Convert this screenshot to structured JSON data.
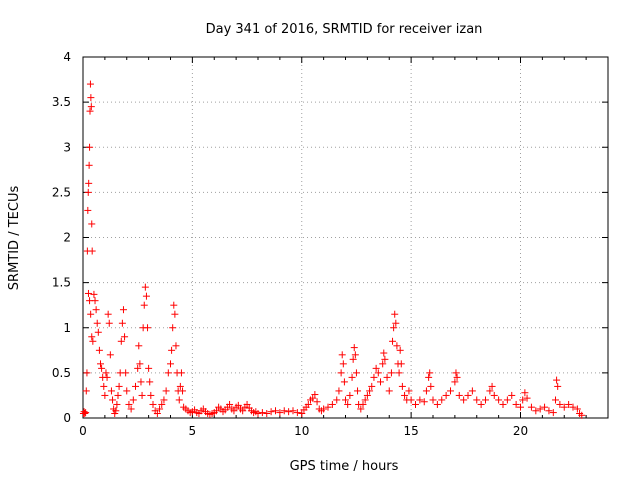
{
  "colors": {
    "marker": "#ff0000",
    "grid": "#a0a0a0",
    "axis": "#000000",
    "background": "#ffffff"
  },
  "chart_data": {
    "type": "scatter",
    "title": "Day 341 of 2016, SRMTID for receiver izan",
    "xlabel": "GPS time / hours",
    "ylabel": "SRMTID / TECUs",
    "xlim": [
      0,
      24
    ],
    "ylim": [
      0,
      4
    ],
    "xticks": [
      0,
      5,
      10,
      15,
      20
    ],
    "yticks": [
      0,
      0.5,
      1,
      1.5,
      2,
      2.5,
      3,
      3.5,
      4
    ],
    "ytick_labels": [
      "0",
      "0.5",
      "1",
      "1.5",
      "2",
      "2.5",
      "3",
      "3.5",
      "4"
    ],
    "grid": true,
    "marker": "+",
    "series": [
      {
        "name": "SRMTID",
        "points": [
          [
            0.02,
            0.05
          ],
          [
            0.05,
            0.07
          ],
          [
            0.08,
            0.05
          ],
          [
            0.12,
            0.06
          ],
          [
            0.15,
            0.3
          ],
          [
            0.18,
            0.5
          ],
          [
            0.2,
            1.85
          ],
          [
            0.22,
            2.3
          ],
          [
            0.24,
            2.5
          ],
          [
            0.26,
            2.6
          ],
          [
            0.28,
            2.8
          ],
          [
            0.3,
            3.0
          ],
          [
            0.32,
            3.4
          ],
          [
            0.34,
            3.7
          ],
          [
            0.36,
            3.55
          ],
          [
            0.38,
            3.45
          ],
          [
            0.4,
            2.15
          ],
          [
            0.42,
            1.85
          ],
          [
            0.25,
            1.38
          ],
          [
            0.3,
            1.3
          ],
          [
            0.35,
            1.15
          ],
          [
            0.4,
            0.9
          ],
          [
            0.45,
            0.85
          ],
          [
            0.5,
            1.37
          ],
          [
            0.55,
            1.3
          ],
          [
            0.6,
            1.2
          ],
          [
            0.65,
            1.05
          ],
          [
            0.7,
            0.95
          ],
          [
            0.75,
            0.75
          ],
          [
            0.8,
            0.6
          ],
          [
            0.85,
            0.55
          ],
          [
            0.9,
            0.45
          ],
          [
            0.95,
            0.35
          ],
          [
            1.0,
            0.25
          ],
          [
            1.05,
            0.5
          ],
          [
            1.1,
            0.45
          ],
          [
            1.15,
            1.15
          ],
          [
            1.2,
            1.05
          ],
          [
            1.25,
            0.7
          ],
          [
            1.3,
            0.3
          ],
          [
            1.35,
            0.2
          ],
          [
            1.4,
            0.1
          ],
          [
            1.45,
            0.05
          ],
          [
            1.5,
            0.08
          ],
          [
            1.55,
            0.15
          ],
          [
            1.6,
            0.25
          ],
          [
            1.65,
            0.35
          ],
          [
            1.7,
            0.5
          ],
          [
            1.75,
            0.85
          ],
          [
            1.8,
            1.05
          ],
          [
            1.85,
            1.2
          ],
          [
            1.9,
            0.9
          ],
          [
            1.95,
            0.5
          ],
          [
            2.0,
            0.3
          ],
          [
            2.1,
            0.15
          ],
          [
            2.2,
            0.1
          ],
          [
            2.3,
            0.2
          ],
          [
            2.4,
            0.35
          ],
          [
            2.5,
            0.55
          ],
          [
            2.55,
            0.8
          ],
          [
            2.6,
            0.6
          ],
          [
            2.65,
            0.4
          ],
          [
            2.7,
            0.25
          ],
          [
            2.75,
            1.0
          ],
          [
            2.8,
            1.25
          ],
          [
            2.85,
            1.45
          ],
          [
            2.9,
            1.35
          ],
          [
            2.95,
            1.0
          ],
          [
            3.0,
            0.55
          ],
          [
            3.05,
            0.4
          ],
          [
            3.1,
            0.25
          ],
          [
            3.2,
            0.15
          ],
          [
            3.3,
            0.08
          ],
          [
            3.4,
            0.05
          ],
          [
            3.5,
            0.1
          ],
          [
            3.6,
            0.15
          ],
          [
            3.7,
            0.2
          ],
          [
            3.8,
            0.3
          ],
          [
            3.9,
            0.5
          ],
          [
            4.0,
            0.6
          ],
          [
            4.05,
            0.75
          ],
          [
            4.1,
            1.0
          ],
          [
            4.15,
            1.25
          ],
          [
            4.2,
            1.15
          ],
          [
            4.25,
            0.8
          ],
          [
            4.3,
            0.5
          ],
          [
            4.35,
            0.3
          ],
          [
            4.4,
            0.2
          ],
          [
            4.45,
            0.35
          ],
          [
            4.5,
            0.5
          ],
          [
            4.55,
            0.3
          ],
          [
            4.6,
            0.12
          ],
          [
            4.7,
            0.1
          ],
          [
            4.8,
            0.08
          ],
          [
            4.9,
            0.06
          ],
          [
            5.0,
            0.07
          ],
          [
            5.1,
            0.09
          ],
          [
            5.2,
            0.06
          ],
          [
            5.3,
            0.05
          ],
          [
            5.4,
            0.08
          ],
          [
            5.5,
            0.1
          ],
          [
            5.6,
            0.07
          ],
          [
            5.7,
            0.05
          ],
          [
            5.8,
            0.04
          ],
          [
            5.9,
            0.05
          ],
          [
            6.0,
            0.06
          ],
          [
            6.1,
            0.08
          ],
          [
            6.2,
            0.12
          ],
          [
            6.3,
            0.1
          ],
          [
            6.4,
            0.07
          ],
          [
            6.5,
            0.09
          ],
          [
            6.6,
            0.12
          ],
          [
            6.7,
            0.15
          ],
          [
            6.8,
            0.1
          ],
          [
            6.9,
            0.08
          ],
          [
            7.0,
            0.12
          ],
          [
            7.1,
            0.14
          ],
          [
            7.2,
            0.1
          ],
          [
            7.3,
            0.08
          ],
          [
            7.4,
            0.12
          ],
          [
            7.5,
            0.15
          ],
          [
            7.6,
            0.11
          ],
          [
            7.7,
            0.08
          ],
          [
            7.8,
            0.06
          ],
          [
            7.9,
            0.07
          ],
          [
            8.0,
            0.05
          ],
          [
            8.2,
            0.06
          ],
          [
            8.4,
            0.05
          ],
          [
            8.6,
            0.07
          ],
          [
            8.8,
            0.08
          ],
          [
            9.0,
            0.06
          ],
          [
            9.2,
            0.08
          ],
          [
            9.4,
            0.07
          ],
          [
            9.6,
            0.08
          ],
          [
            9.8,
            0.06
          ],
          [
            10.0,
            0.05
          ],
          [
            10.1,
            0.09
          ],
          [
            10.2,
            0.12
          ],
          [
            10.3,
            0.15
          ],
          [
            10.4,
            0.2
          ],
          [
            10.5,
            0.22
          ],
          [
            10.6,
            0.26
          ],
          [
            10.7,
            0.18
          ],
          [
            10.8,
            0.1
          ],
          [
            10.9,
            0.08
          ],
          [
            11.0,
            0.1
          ],
          [
            11.2,
            0.12
          ],
          [
            11.4,
            0.15
          ],
          [
            11.6,
            0.2
          ],
          [
            11.7,
            0.3
          ],
          [
            11.8,
            0.5
          ],
          [
            11.85,
            0.7
          ],
          [
            11.9,
            0.6
          ],
          [
            11.95,
            0.4
          ],
          [
            12.0,
            0.2
          ],
          [
            12.1,
            0.15
          ],
          [
            12.2,
            0.25
          ],
          [
            12.3,
            0.45
          ],
          [
            12.35,
            0.65
          ],
          [
            12.4,
            0.78
          ],
          [
            12.45,
            0.7
          ],
          [
            12.5,
            0.5
          ],
          [
            12.55,
            0.3
          ],
          [
            12.6,
            0.15
          ],
          [
            12.7,
            0.1
          ],
          [
            12.8,
            0.15
          ],
          [
            12.9,
            0.2
          ],
          [
            13.0,
            0.25
          ],
          [
            13.1,
            0.3
          ],
          [
            13.2,
            0.35
          ],
          [
            13.3,
            0.45
          ],
          [
            13.4,
            0.55
          ],
          [
            13.5,
            0.5
          ],
          [
            13.6,
            0.4
          ],
          [
            13.7,
            0.6
          ],
          [
            13.75,
            0.72
          ],
          [
            13.8,
            0.65
          ],
          [
            13.9,
            0.45
          ],
          [
            14.0,
            0.3
          ],
          [
            14.1,
            0.5
          ],
          [
            14.15,
            0.85
          ],
          [
            14.2,
            1.0
          ],
          [
            14.25,
            1.15
          ],
          [
            14.3,
            1.05
          ],
          [
            14.35,
            0.8
          ],
          [
            14.4,
            0.6
          ],
          [
            14.45,
            0.5
          ],
          [
            14.5,
            0.75
          ],
          [
            14.55,
            0.6
          ],
          [
            14.6,
            0.35
          ],
          [
            14.7,
            0.25
          ],
          [
            14.8,
            0.2
          ],
          [
            14.9,
            0.3
          ],
          [
            15.0,
            0.2
          ],
          [
            15.2,
            0.15
          ],
          [
            15.4,
            0.2
          ],
          [
            15.6,
            0.18
          ],
          [
            15.7,
            0.3
          ],
          [
            15.8,
            0.45
          ],
          [
            15.85,
            0.5
          ],
          [
            15.9,
            0.35
          ],
          [
            16.0,
            0.2
          ],
          [
            16.2,
            0.15
          ],
          [
            16.4,
            0.2
          ],
          [
            16.6,
            0.25
          ],
          [
            16.8,
            0.3
          ],
          [
            17.0,
            0.4
          ],
          [
            17.05,
            0.5
          ],
          [
            17.1,
            0.45
          ],
          [
            17.2,
            0.25
          ],
          [
            17.4,
            0.2
          ],
          [
            17.6,
            0.25
          ],
          [
            17.8,
            0.3
          ],
          [
            18.0,
            0.2
          ],
          [
            18.2,
            0.15
          ],
          [
            18.4,
            0.2
          ],
          [
            18.6,
            0.3
          ],
          [
            18.7,
            0.35
          ],
          [
            18.8,
            0.25
          ],
          [
            19.0,
            0.2
          ],
          [
            19.2,
            0.15
          ],
          [
            19.4,
            0.2
          ],
          [
            19.6,
            0.25
          ],
          [
            19.8,
            0.15
          ],
          [
            20.0,
            0.12
          ],
          [
            20.1,
            0.2
          ],
          [
            20.2,
            0.28
          ],
          [
            20.3,
            0.22
          ],
          [
            20.5,
            0.12
          ],
          [
            20.7,
            0.08
          ],
          [
            20.9,
            0.1
          ],
          [
            21.1,
            0.12
          ],
          [
            21.3,
            0.08
          ],
          [
            21.5,
            0.06
          ],
          [
            21.6,
            0.2
          ],
          [
            21.65,
            0.42
          ],
          [
            21.7,
            0.35
          ],
          [
            21.8,
            0.15
          ],
          [
            22.0,
            0.12
          ],
          [
            22.2,
            0.15
          ],
          [
            22.4,
            0.12
          ],
          [
            22.6,
            0.1
          ],
          [
            22.7,
            0.05
          ],
          [
            22.8,
            0.03
          ]
        ]
      }
    ]
  }
}
